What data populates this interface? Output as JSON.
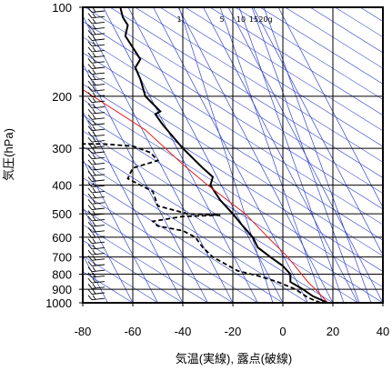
{
  "chart_data": {
    "type": "line",
    "title": "",
    "xlabel": "気温(実線), 露点(破線)",
    "ylabel": "気圧(hPa)",
    "xlim": [
      -80,
      40
    ],
    "ylim": [
      1000,
      100
    ],
    "y_scale": "log",
    "x_ticks": [
      -80,
      -60,
      -40,
      -20,
      0,
      20,
      40
    ],
    "y_ticks": [
      100,
      200,
      300,
      400,
      500,
      600,
      700,
      800,
      900,
      1000
    ],
    "mixing_ratio_labels": [
      "1",
      "5",
      "10",
      "15",
      "20g"
    ],
    "series": [
      {
        "style": "solid",
        "points": [
          [
            18,
            1000
          ],
          [
            12,
            950
          ],
          [
            8,
            900
          ],
          [
            3,
            850
          ],
          [
            3,
            800
          ],
          [
            0,
            750
          ],
          [
            -5,
            700
          ],
          [
            -10,
            650
          ],
          [
            -12,
            600
          ],
          [
            -16,
            550
          ],
          [
            -20,
            500
          ],
          [
            -25,
            450
          ],
          [
            -29,
            400
          ],
          [
            -28,
            375
          ],
          [
            -32,
            350
          ],
          [
            -40,
            300
          ],
          [
            -48,
            250
          ],
          [
            -51,
            230
          ],
          [
            -49,
            225
          ],
          [
            -55,
            200
          ],
          [
            -57,
            175
          ],
          [
            -59,
            160
          ],
          [
            -57,
            150
          ],
          [
            -63,
            125
          ],
          [
            -62,
            115
          ],
          [
            -64,
            108
          ],
          [
            -65,
            100
          ]
        ]
      },
      {
        "style": "dashed",
        "points": [
          [
            15,
            1000
          ],
          [
            10,
            960
          ],
          [
            5,
            900
          ],
          [
            -2,
            850
          ],
          [
            -10,
            810
          ],
          [
            -18,
            780
          ],
          [
            -28,
            700
          ],
          [
            -32,
            650
          ],
          [
            -35,
            600
          ],
          [
            -40,
            570
          ],
          [
            -50,
            550
          ],
          [
            -52,
            530
          ],
          [
            -40,
            510
          ],
          [
            -25,
            505
          ],
          [
            -38,
            500
          ],
          [
            -50,
            470
          ],
          [
            -52,
            420
          ],
          [
            -62,
            380
          ],
          [
            -60,
            350
          ],
          [
            -50,
            330
          ],
          [
            -53,
            310
          ],
          [
            -60,
            295
          ],
          [
            -72,
            290
          ],
          [
            -82,
            290
          ]
        ]
      },
      {
        "style": "red",
        "points": [
          [
            18,
            1000
          ],
          [
            13,
            900
          ],
          [
            10,
            850
          ],
          [
            2,
            700
          ],
          [
            -6,
            600
          ],
          [
            -15,
            500
          ],
          [
            -30,
            400
          ],
          [
            -40,
            340
          ],
          [
            -55,
            260
          ],
          [
            -80,
            190
          ]
        ]
      }
    ],
    "wind_barbs": "left column"
  }
}
